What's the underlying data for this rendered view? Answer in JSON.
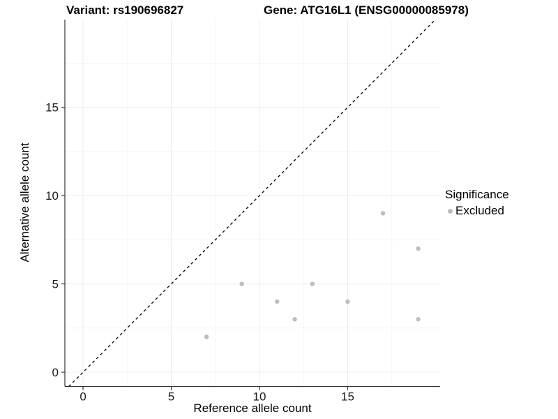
{
  "titles": {
    "left": "Variant: rs190696827",
    "right": "Gene: ATG16L1 (ENSG00000085978)"
  },
  "chart_data": {
    "type": "scatter",
    "title": "",
    "xlabel": "Reference allele count",
    "ylabel": "Alternative allele count",
    "xlim": [
      -1.03,
      20.24
    ],
    "ylim": [
      -0.81,
      19.97
    ],
    "x_major_ticks": [
      0,
      5,
      10,
      15
    ],
    "y_major_ticks": [
      0,
      5,
      10,
      15
    ],
    "x_minor_ticks": [
      2.5,
      7.5,
      12.5,
      17.5
    ],
    "y_minor_ticks": [
      2.5,
      7.5,
      12.5,
      17.5
    ],
    "grid": "major+minor",
    "identity_line": {
      "slope": 1,
      "intercept": 0,
      "style": "dashed"
    },
    "series": [
      {
        "name": "Excluded",
        "points": [
          [
            7,
            2
          ],
          [
            9,
            5
          ],
          [
            11,
            4
          ],
          [
            12,
            3
          ],
          [
            13,
            5
          ],
          [
            15,
            4
          ],
          [
            17,
            9
          ],
          [
            19,
            3
          ],
          [
            19,
            7
          ]
        ]
      }
    ],
    "legend": {
      "title": "Significance",
      "position": "right",
      "entries": [
        {
          "label": "Excluded",
          "color": "#bdbdbd"
        }
      ]
    }
  },
  "colors": {
    "point": "#bdbdbd",
    "grid_major": "#ececec",
    "grid_minor": "#f5f5f5",
    "axis_line": "#333333",
    "tick_mark": "#333333",
    "tick_label": "#1a1a1a",
    "identity_line": "#000000",
    "background": "#ffffff"
  }
}
